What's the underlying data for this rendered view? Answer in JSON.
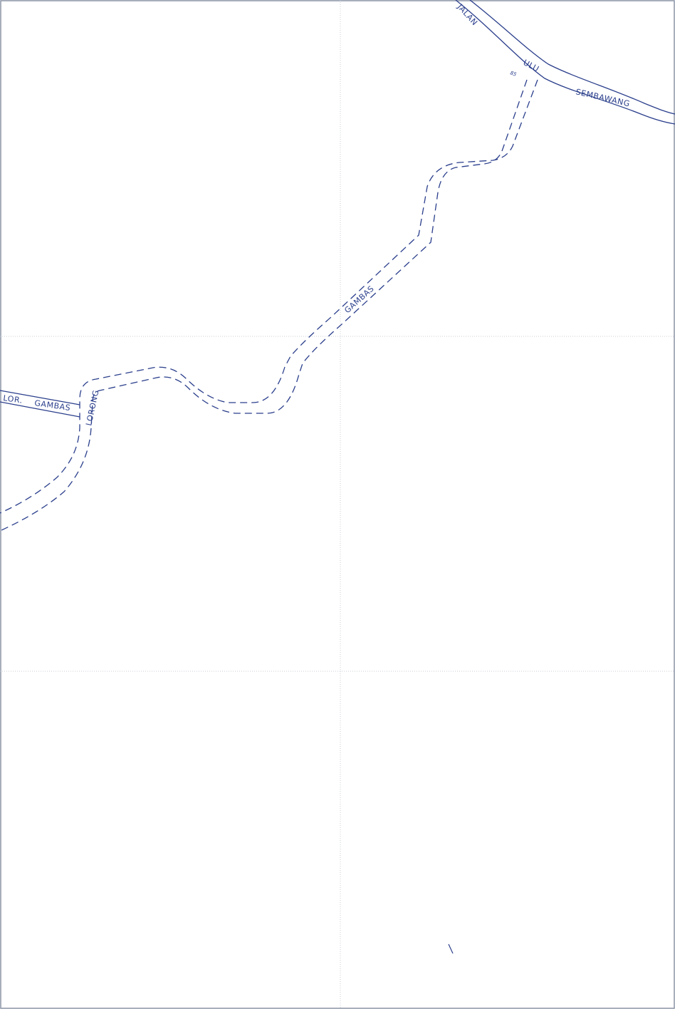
{
  "map": {
    "colors": {
      "road": "#2b3f8c",
      "grid": "#c9ced6",
      "background": "#ffffff"
    },
    "labels": {
      "jalan": "JALAN",
      "ulu": "ULU",
      "sembawang": "SEMBAWANG",
      "route_number": "85",
      "gambas_main": "GAMBAS",
      "lor": "LOR.",
      "lor_gambas": "GAMBAS",
      "lorong": "LORONG"
    }
  }
}
